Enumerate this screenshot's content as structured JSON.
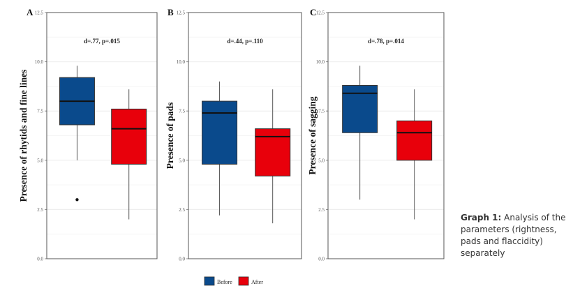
{
  "chart_data": [
    {
      "type": "box",
      "panel_label": "A",
      "ylabel": "Presence of rhytids and fine lines",
      "annotation": "d=.77, p=.015",
      "ylim": [
        0,
        12.5
      ],
      "yticks": [
        "0.0",
        "2.5",
        "5.0",
        "7.5",
        "10.0",
        "12.5"
      ],
      "grid": true,
      "boxes": [
        {
          "group": "Before",
          "color": "#0a4a8c",
          "whisker_low": 5.0,
          "q1": 6.8,
          "median": 8.0,
          "q3": 9.2,
          "whisker_high": 9.8,
          "outliers": [
            3.0
          ]
        },
        {
          "group": "After",
          "color": "#e8000b",
          "whisker_low": 2.0,
          "q1": 4.8,
          "median": 6.6,
          "q3": 7.6,
          "whisker_high": 8.6,
          "outliers": []
        }
      ]
    },
    {
      "type": "box",
      "panel_label": "B",
      "ylabel": "Presence of pads",
      "annotation": "d=.44, p=.110",
      "ylim": [
        0,
        12.5
      ],
      "yticks": [
        "0.0",
        "2.5",
        "5.0",
        "7.5",
        "10.0",
        "12.5"
      ],
      "grid": true,
      "boxes": [
        {
          "group": "Before",
          "color": "#0a4a8c",
          "whisker_low": 2.2,
          "q1": 4.8,
          "median": 7.4,
          "q3": 8.0,
          "whisker_high": 9.0,
          "outliers": []
        },
        {
          "group": "After",
          "color": "#e8000b",
          "whisker_low": 1.8,
          "q1": 4.2,
          "median": 6.2,
          "q3": 6.6,
          "whisker_high": 8.6,
          "outliers": []
        }
      ]
    },
    {
      "type": "box",
      "panel_label": "C",
      "ylabel": "Presence of sagging",
      "annotation": "d=.78, p=.014",
      "ylim": [
        0,
        12.5
      ],
      "yticks": [
        "0.0",
        "2.5",
        "5.0",
        "7.5",
        "10.0",
        "12.5"
      ],
      "grid": true,
      "boxes": [
        {
          "group": "Before",
          "color": "#0a4a8c",
          "whisker_low": 3.0,
          "q1": 6.4,
          "median": 8.4,
          "q3": 8.8,
          "whisker_high": 9.8,
          "outliers": []
        },
        {
          "group": "After",
          "color": "#e8000b",
          "whisker_low": 2.0,
          "q1": 5.0,
          "median": 6.4,
          "q3": 7.0,
          "whisker_high": 8.6,
          "outliers": []
        }
      ]
    }
  ],
  "legend": {
    "placement": "bottom",
    "items": [
      {
        "label": "Before",
        "color": "#0a4a8c"
      },
      {
        "label": "After",
        "color": "#e8000b"
      }
    ]
  },
  "caption": {
    "label": "Graph 1:",
    "text": " Analysis of the parameters (rightness, pads and flaccidity) separately"
  }
}
